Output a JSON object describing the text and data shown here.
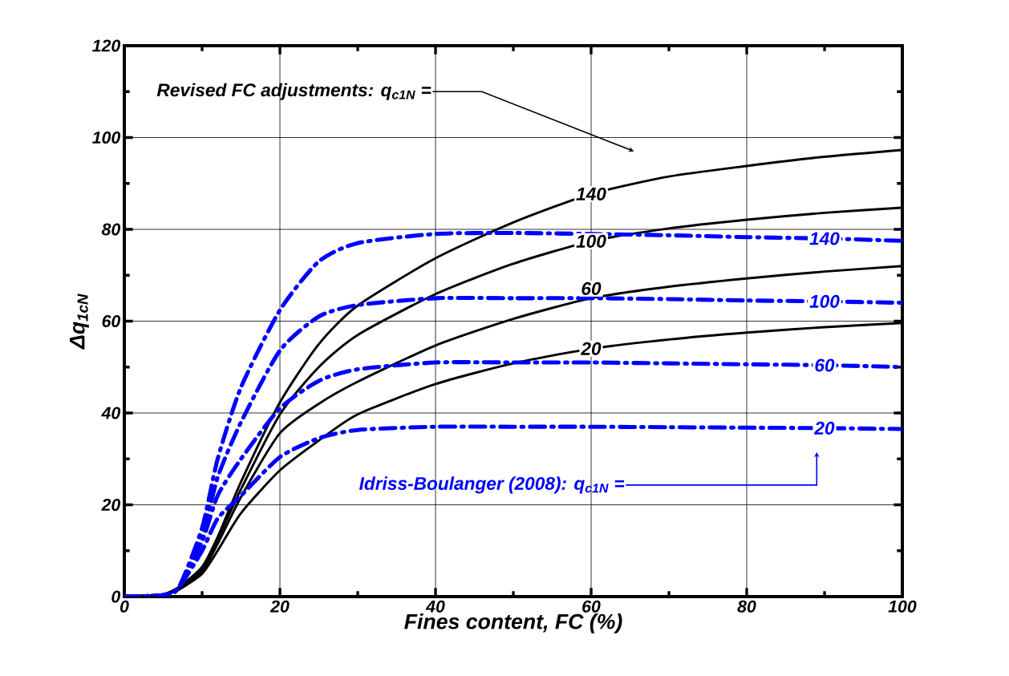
{
  "chart_data": {
    "type": "line",
    "xlabel": "Fines content, FC (%)",
    "ylabel": "Δq$_{1cN}$",
    "annotations": [
      "Revised FC adjustments: q$_{c1N}$ =",
      "Idriss-Boulanger (2008): q$_{c1N}$ ="
    ],
    "x": [
      0,
      5,
      7,
      10,
      12,
      15,
      20,
      25,
      30,
      40,
      50,
      60,
      70,
      80,
      90,
      100
    ],
    "series": [
      {
        "name": "140",
        "color": "#000000",
        "line_style": "solid",
        "values": [
          0,
          0.5,
          2,
          6.5,
          13,
          25,
          42.3,
          55,
          63.4,
          73.7,
          81.5,
          87.7,
          91.5,
          93.8,
          95.8,
          97.3
        ]
      },
      {
        "name": "100",
        "color": "#000000",
        "line_style": "solid",
        "values": [
          0,
          0.5,
          2,
          6,
          12.5,
          23.4,
          39.7,
          50,
          57,
          65.9,
          72.5,
          77.4,
          80.2,
          82.1,
          83.6,
          84.7
        ]
      },
      {
        "name": "60",
        "color": "#000000",
        "line_style": "solid",
        "values": [
          0,
          0.5,
          2,
          5.5,
          11.5,
          21.7,
          35.6,
          42,
          46.8,
          54.7,
          60.5,
          65,
          67.5,
          69.3,
          70.8,
          72
        ]
      },
      {
        "name": "20",
        "color": "#000000",
        "line_style": "solid",
        "values": [
          0,
          0.5,
          1.5,
          5,
          10,
          18.2,
          27.5,
          34,
          39.7,
          46.3,
          50.8,
          54,
          56,
          57.5,
          58.7,
          59.6
        ]
      },
      {
        "name": "140",
        "color": "#0000ff",
        "line_style": "dashdot",
        "values": [
          0,
          0.3,
          2,
          15,
          30,
          45.6,
          62.4,
          73,
          77,
          79,
          79.2,
          79,
          78.7,
          78.3,
          78,
          77.5
        ]
      },
      {
        "name": "100",
        "color": "#0000ff",
        "line_style": "dashdot",
        "values": [
          0,
          0.3,
          2,
          13,
          26,
          38,
          53.6,
          61,
          63.5,
          65,
          65,
          65,
          64.8,
          64.5,
          64.3,
          64
        ]
      },
      {
        "name": "60",
        "color": "#0000ff",
        "line_style": "dashdot",
        "values": [
          0,
          0.3,
          2,
          12,
          22,
          30,
          41,
          47,
          49.5,
          51,
          51,
          51,
          50.8,
          50.6,
          50.4,
          50
        ]
      },
      {
        "name": "20",
        "color": "#0000ff",
        "line_style": "dashdot",
        "values": [
          0,
          0.3,
          2,
          10,
          17,
          22,
          30.4,
          34.5,
          36.3,
          37,
          37,
          37,
          36.9,
          36.8,
          36.7,
          36.5
        ]
      }
    ],
    "xlim": [
      0,
      100
    ],
    "ylim": [
      0,
      120
    ],
    "xticks": [
      0,
      20,
      40,
      60,
      80,
      100
    ],
    "yticks": [
      0,
      20,
      40,
      60,
      80,
      100,
      120
    ],
    "grid": true
  }
}
